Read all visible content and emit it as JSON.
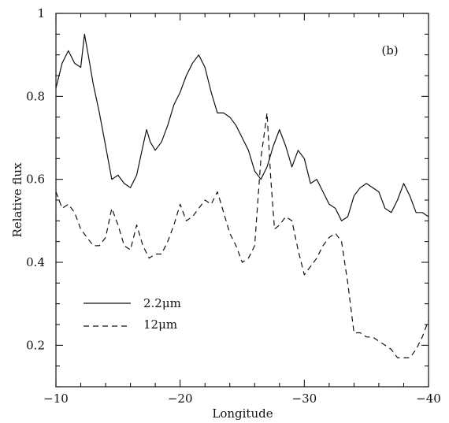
{
  "chart_data": {
    "type": "line",
    "panel_label": "(b)",
    "xlabel": "Longitude",
    "ylabel": "Relative flux",
    "xlim": [
      -10,
      -40
    ],
    "ylim": [
      0.1,
      1.0
    ],
    "xticks": [
      -10,
      -20,
      -30,
      -40
    ],
    "xtick_labels": [
      "−10",
      "−20",
      "−30",
      "−40"
    ],
    "yticks": [
      0.2,
      0.4,
      0.6,
      0.8,
      1.0
    ],
    "ytick_labels": [
      "0.2",
      "0.4",
      "0.6",
      "0.8",
      "1"
    ],
    "legend_position": "lower-left",
    "series": [
      {
        "name": "2.2μm",
        "style": "solid",
        "x": [
          -10,
          -10.5,
          -11,
          -11.5,
          -12,
          -12.3,
          -12.6,
          -13,
          -13.5,
          -14,
          -14.5,
          -15,
          -15.5,
          -16,
          -16.5,
          -17,
          -17.3,
          -17.6,
          -18,
          -18.5,
          -19,
          -19.5,
          -20,
          -20.5,
          -21,
          -21.5,
          -22,
          -22.5,
          -23,
          -23.5,
          -24,
          -24.5,
          -25,
          -25.5,
          -26,
          -26.5,
          -27,
          -27.5,
          -28,
          -28.5,
          -29,
          -29.5,
          -30,
          -30.5,
          -31,
          -31.5,
          -32,
          -32.5,
          -33,
          -33.5,
          -34,
          -34.5,
          -35,
          -35.5,
          -36,
          -36.5,
          -37,
          -37.5,
          -38,
          -38.5,
          -39,
          -39.5,
          -40
        ],
        "values": [
          0.82,
          0.88,
          0.91,
          0.88,
          0.87,
          0.95,
          0.9,
          0.83,
          0.76,
          0.68,
          0.6,
          0.61,
          0.59,
          0.58,
          0.61,
          0.68,
          0.72,
          0.69,
          0.67,
          0.69,
          0.73,
          0.78,
          0.81,
          0.85,
          0.88,
          0.9,
          0.87,
          0.81,
          0.76,
          0.76,
          0.75,
          0.73,
          0.7,
          0.67,
          0.62,
          0.6,
          0.63,
          0.68,
          0.72,
          0.68,
          0.63,
          0.67,
          0.65,
          0.59,
          0.6,
          0.57,
          0.54,
          0.53,
          0.5,
          0.51,
          0.56,
          0.58,
          0.59,
          0.58,
          0.57,
          0.53,
          0.52,
          0.55,
          0.59,
          0.56,
          0.52,
          0.52,
          0.51
        ]
      },
      {
        "name": "12μm",
        "style": "dashed",
        "x": [
          -10,
          -10.5,
          -11,
          -11.5,
          -12,
          -12.5,
          -13,
          -13.5,
          -14,
          -14.5,
          -15,
          -15.5,
          -16,
          -16.5,
          -17,
          -17.5,
          -18,
          -18.5,
          -19,
          -19.5,
          -20,
          -20.5,
          -21,
          -21.5,
          -22,
          -22.5,
          -23,
          -23.5,
          -24,
          -24.5,
          -25,
          -25.5,
          -26,
          -26.5,
          -27,
          -27.3,
          -27.6,
          -28,
          -28.5,
          -29,
          -29.5,
          -30,
          -30.5,
          -31,
          -31.5,
          -32,
          -32.5,
          -33,
          -33.5,
          -34,
          -34.5,
          -35,
          -35.5,
          -36,
          -36.5,
          -37,
          -37.5,
          -38,
          -38.5,
          -39,
          -39.5,
          -40
        ],
        "values": [
          0.57,
          0.53,
          0.54,
          0.52,
          0.48,
          0.46,
          0.44,
          0.44,
          0.46,
          0.53,
          0.49,
          0.44,
          0.43,
          0.49,
          0.44,
          0.41,
          0.42,
          0.42,
          0.45,
          0.49,
          0.54,
          0.5,
          0.51,
          0.53,
          0.55,
          0.54,
          0.57,
          0.52,
          0.47,
          0.44,
          0.4,
          0.41,
          0.44,
          0.65,
          0.76,
          0.6,
          0.48,
          0.49,
          0.51,
          0.5,
          0.43,
          0.37,
          0.39,
          0.41,
          0.44,
          0.46,
          0.47,
          0.45,
          0.35,
          0.23,
          0.23,
          0.22,
          0.22,
          0.21,
          0.2,
          0.19,
          0.17,
          0.17,
          0.17,
          0.19,
          0.22,
          0.26
        ]
      }
    ]
  }
}
